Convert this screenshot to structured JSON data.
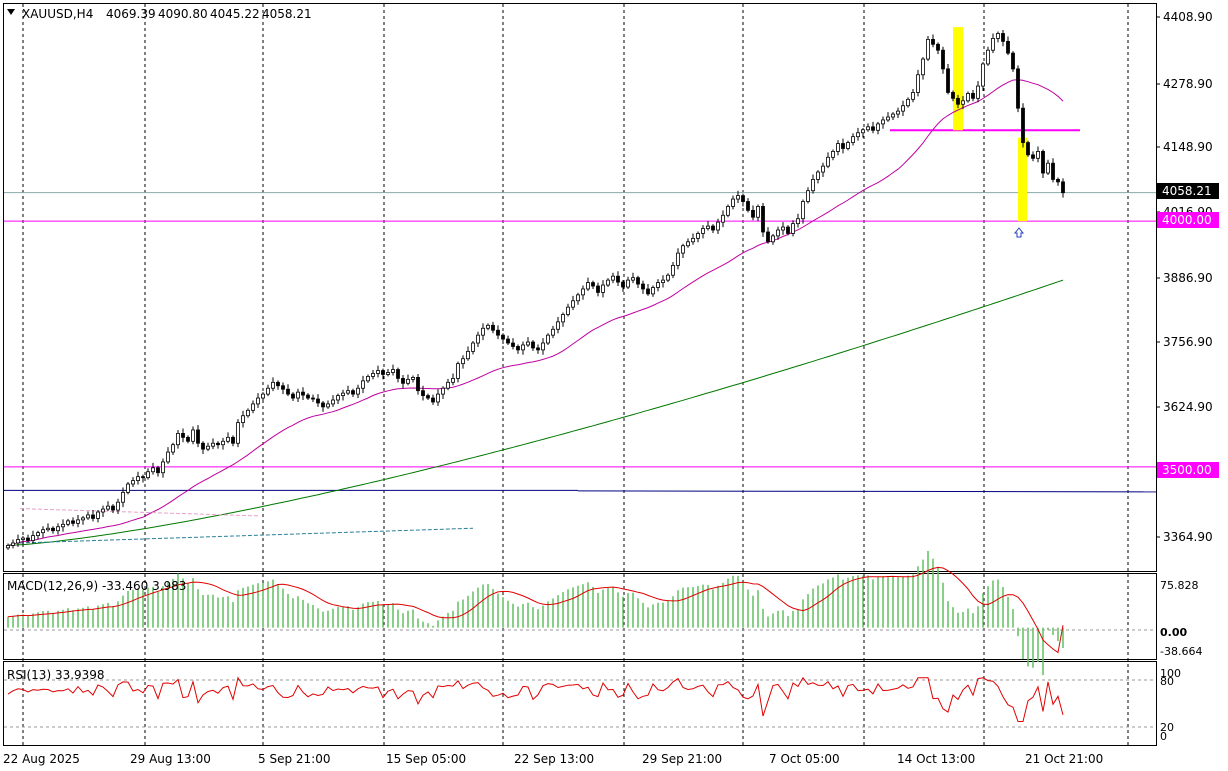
{
  "header": {
    "symbol": "XAUUSD,H4",
    "open": "4069.39",
    "high": "4090.80",
    "low": "4045.22",
    "close": "4058.21"
  },
  "colors": {
    "bull_candle": "#008000",
    "bear_candle": "#000000",
    "ma_fast": "#c000a0",
    "ma_slow": "#007800",
    "level_line": "#ff00ff",
    "blue_line": "#000080",
    "highlight": "#ffff00",
    "macd_hist": "#60c060",
    "macd_signal": "#e00000",
    "rsi": "#e00000"
  },
  "price_axis": {
    "ticks": [
      "4408.90",
      "4278.90",
      "4148.90",
      "4016.90",
      "3886.90",
      "3756.90",
      "3624.90",
      "3494.90",
      "3364.90"
    ]
  },
  "price_tags": {
    "current": "4058.21",
    "level_4000": "4000.00",
    "level_3500": "3500.00"
  },
  "time_axis": {
    "labels": [
      "22 Aug 2025",
      "29 Aug 13:00",
      "5 Sep 21:00",
      "15 Sep 05:00",
      "22 Sep 13:00",
      "29 Sep 21:00",
      "7 Oct 05:00",
      "14 Oct 13:00",
      "21 Oct 21:00"
    ]
  },
  "macd": {
    "title": "MACD(12,26,9) -33.460 3.983",
    "ticks": [
      "75.828",
      "0.00",
      "-38.664"
    ]
  },
  "rsi": {
    "title": "RSI(13) 33.9398",
    "ticks": [
      "100",
      "80",
      "20",
      "0"
    ]
  },
  "chart_data": {
    "type": "candlestick",
    "timeframe": "H4",
    "ylim": [
      3290,
      4440
    ],
    "close": [
      3340,
      3345,
      3352,
      3355,
      3350,
      3360,
      3366,
      3372,
      3375,
      3370,
      3378,
      3383,
      3390,
      3385,
      3392,
      3396,
      3402,
      3395,
      3408,
      3414,
      3420,
      3412,
      3428,
      3448,
      3465,
      3472,
      3480,
      3478,
      3490,
      3498,
      3488,
      3510,
      3530,
      3545,
      3568,
      3560,
      3552,
      3575,
      3548,
      3536,
      3542,
      3548,
      3545,
      3552,
      3560,
      3548,
      3590,
      3604,
      3615,
      3628,
      3640,
      3648,
      3660,
      3672,
      3665,
      3658,
      3648,
      3640,
      3652,
      3646,
      3640,
      3638,
      3630,
      3622,
      3628,
      3636,
      3645,
      3650,
      3655,
      3648,
      3660,
      3675,
      3684,
      3690,
      3696,
      3688,
      3692,
      3698,
      3680,
      3670,
      3678,
      3682,
      3655,
      3645,
      3640,
      3632,
      3648,
      3660,
      3672,
      3680,
      3710,
      3720,
      3735,
      3752,
      3768,
      3782,
      3788,
      3778,
      3768,
      3760,
      3752,
      3745,
      3738,
      3748,
      3754,
      3742,
      3738,
      3752,
      3768,
      3780,
      3795,
      3810,
      3825,
      3838,
      3850,
      3862,
      3875,
      3868,
      3855,
      3870,
      3880,
      3888,
      3876,
      3866,
      3880,
      3885,
      3872,
      3862,
      3852,
      3865,
      3875,
      3880,
      3890,
      3910,
      3935,
      3950,
      3958,
      3965,
      3975,
      3985,
      3990,
      3982,
      3998,
      4012,
      4030,
      4045,
      4052,
      4040,
      4022,
      4008,
      4030,
      3978,
      3958,
      3970,
      3982,
      3988,
      3975,
      3995,
      4005,
      4040,
      4062,
      4085,
      4100,
      4112,
      4130,
      4142,
      4158,
      4148,
      4160,
      4172,
      4180,
      4186,
      4192,
      4185,
      4198,
      4206,
      4212,
      4218,
      4224,
      4235,
      4248,
      4262,
      4298,
      4330,
      4370,
      4360,
      4348,
      4310,
      4262,
      4250,
      4238,
      4245,
      4260,
      4250,
      4275,
      4320,
      4348,
      4372,
      4382,
      4366,
      4342,
      4310,
      4230,
      4160,
      4135,
      4128,
      4142,
      4098,
      4118,
      4085,
      4080,
      4058
    ],
    "ma_fast_label": "",
    "levels": [
      4000.0,
      3500.0
    ],
    "resistance_level": 4185,
    "macd": {
      "ylim": [
        -45,
        85
      ],
      "hist_last": -33.46,
      "signal_last": 3.983
    },
    "rsi": {
      "ylim": [
        0,
        100
      ],
      "levels": [
        80,
        20
      ],
      "last": 33.9398
    }
  }
}
